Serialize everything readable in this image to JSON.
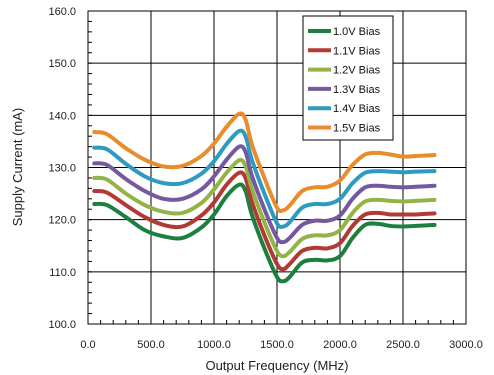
{
  "chart_data": {
    "type": "line",
    "title": "",
    "xlabel": "Output Frequency (MHz)",
    "ylabel": "Supply Current (mA)",
    "xlim": [
      0,
      3000
    ],
    "ylim": [
      100,
      160
    ],
    "grid": true,
    "legend_position": "top-right",
    "x_ticks": [
      0,
      500,
      1000,
      1500,
      2000,
      2500,
      3000
    ],
    "x_tick_labels": [
      "0.0",
      "500.0",
      "1000.0",
      "1500.0",
      "2000.0",
      "2500.0",
      "3000.0"
    ],
    "y_ticks": [
      100,
      110,
      120,
      130,
      140,
      150,
      160
    ],
    "y_tick_labels": [
      "100.0",
      "110.0",
      "120.0",
      "130.0",
      "140.0",
      "150.0",
      "160.0"
    ],
    "x": [
      50,
      150,
      300,
      450,
      600,
      750,
      900,
      1000,
      1100,
      1200,
      1250,
      1300,
      1400,
      1500,
      1550,
      1600,
      1700,
      1800,
      1900,
      2000,
      2100,
      2200,
      2300,
      2400,
      2500,
      2600,
      2750
    ],
    "series": [
      {
        "name": "1.0V Bias",
        "color": "#1d7f3e",
        "values": [
          123.0,
          122.8,
          120.5,
          118.0,
          116.8,
          116.5,
          118.5,
          121.0,
          124.5,
          126.7,
          125.5,
          121.0,
          114.5,
          109.0,
          108.2,
          109.0,
          111.8,
          112.3,
          112.2,
          113.0,
          116.5,
          119.0,
          119.2,
          118.8,
          118.7,
          118.8,
          119.0
        ]
      },
      {
        "name": "1.1V Bias",
        "color": "#b23a34",
        "values": [
          125.5,
          125.2,
          122.8,
          120.5,
          119.0,
          118.7,
          120.8,
          123.3,
          126.7,
          129.0,
          128.0,
          123.5,
          117.0,
          111.5,
          110.5,
          111.5,
          114.0,
          114.6,
          114.5,
          115.5,
          118.8,
          121.0,
          121.3,
          121.0,
          121.0,
          121.0,
          121.2
        ]
      },
      {
        "name": "1.2V Bias",
        "color": "#94b346",
        "values": [
          128.0,
          127.7,
          125.0,
          122.8,
          121.5,
          121.3,
          123.2,
          125.8,
          129.0,
          131.4,
          130.3,
          126.0,
          119.5,
          114.0,
          113.0,
          113.8,
          116.3,
          117.0,
          117.0,
          118.0,
          121.3,
          123.5,
          123.8,
          123.6,
          123.5,
          123.6,
          123.8
        ]
      },
      {
        "name": "1.3V Bias",
        "color": "#7458a0",
        "values": [
          130.8,
          130.5,
          127.8,
          125.5,
          124.0,
          124.0,
          125.8,
          128.3,
          131.5,
          134.0,
          133.0,
          128.5,
          122.0,
          116.5,
          115.7,
          116.5,
          119.0,
          119.8,
          119.8,
          120.8,
          124.0,
          126.2,
          126.5,
          126.3,
          126.2,
          126.3,
          126.5
        ]
      },
      {
        "name": "1.4V Bias",
        "color": "#2c9bc2",
        "values": [
          133.8,
          133.5,
          130.7,
          128.3,
          127.0,
          127.0,
          128.8,
          131.2,
          134.5,
          137.0,
          136.0,
          131.5,
          125.0,
          119.3,
          118.7,
          119.5,
          122.3,
          123.0,
          123.0,
          124.0,
          127.0,
          129.0,
          129.3,
          129.2,
          129.1,
          129.2,
          129.3
        ]
      },
      {
        "name": "1.5V Bias",
        "color": "#e88c2c",
        "values": [
          136.8,
          136.4,
          133.7,
          131.5,
          130.2,
          130.3,
          132.2,
          134.6,
          137.8,
          140.3,
          139.2,
          134.5,
          128.0,
          122.3,
          121.8,
          122.7,
          125.5,
          126.2,
          126.3,
          127.5,
          130.5,
          132.5,
          132.8,
          132.5,
          132.1,
          132.2,
          132.4
        ]
      }
    ]
  }
}
